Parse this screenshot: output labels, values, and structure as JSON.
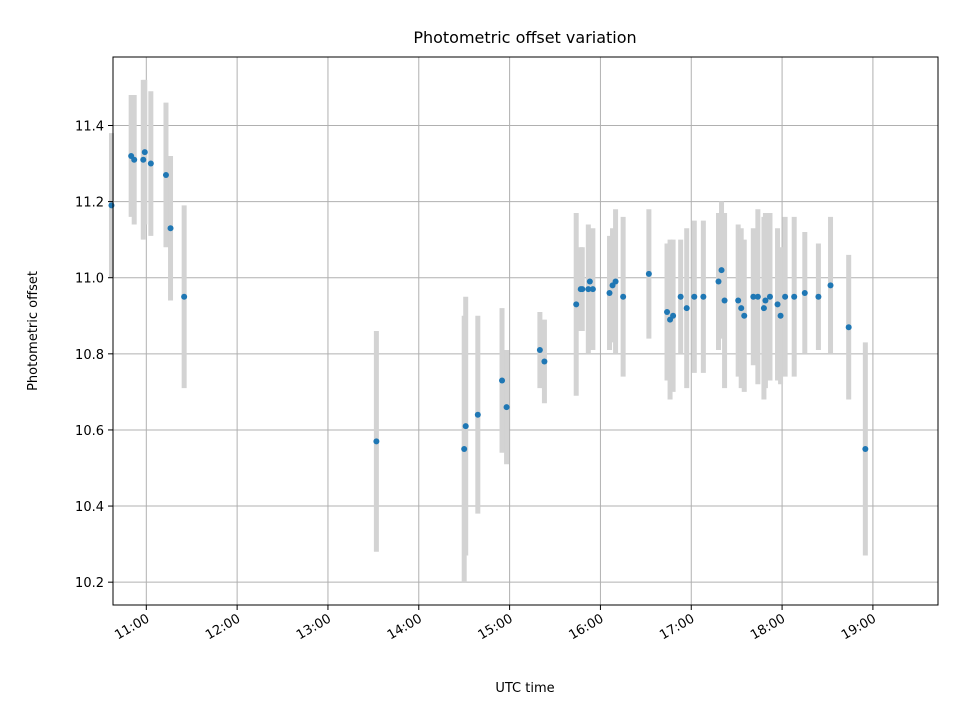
{
  "chart_data": {
    "type": "scatter",
    "title": "Photometric offset variation",
    "xlabel": "UTC time",
    "ylabel": "Photometric offset",
    "grid": true,
    "x_ticks": [
      "11:00",
      "12:00",
      "13:00",
      "14:00",
      "15:00",
      "16:00",
      "17:00",
      "18:00",
      "19:00"
    ],
    "y_ticks": [
      "10.2",
      "10.4",
      "10.6",
      "10.8",
      "11.0",
      "11.2",
      "11.4"
    ],
    "xlim": [
      "10:38",
      "19:43"
    ],
    "ylim": [
      10.14,
      11.58
    ],
    "colors": {
      "points": "#1f77b4",
      "errorbars": "#d3d3d3",
      "grid": "#b0b0b0"
    },
    "series": [
      {
        "x": [
          "10:37",
          "10:50",
          "10:52",
          "10:58",
          "10:59",
          "11:03",
          "11:13",
          "11:16",
          "11:25",
          "13:32",
          "14:30",
          "14:31",
          "14:39",
          "14:55",
          "14:58",
          "15:20",
          "15:23",
          "15:44",
          "15:47",
          "15:48",
          "15:52",
          "15:53",
          "15:55",
          "16:06",
          "16:08",
          "16:10",
          "16:15",
          "16:32",
          "16:44",
          "16:46",
          "16:48",
          "16:53",
          "16:57",
          "17:02",
          "17:08",
          "17:18",
          "17:20",
          "17:22",
          "17:31",
          "17:33",
          "17:35",
          "17:41",
          "17:44",
          "17:48",
          "17:49",
          "17:52",
          "17:57",
          "17:59",
          "18:02",
          "18:08",
          "18:15",
          "18:24",
          "18:32",
          "18:44",
          "18:55"
        ],
        "y": [
          11.19,
          11.32,
          11.31,
          11.31,
          11.33,
          11.3,
          11.27,
          11.13,
          10.95,
          10.57,
          10.55,
          10.61,
          10.64,
          10.73,
          10.66,
          10.81,
          10.78,
          10.93,
          10.97,
          10.97,
          10.97,
          10.99,
          10.97,
          10.96,
          10.98,
          10.99,
          10.95,
          11.01,
          10.91,
          10.89,
          10.9,
          10.95,
          10.92,
          10.95,
          10.95,
          10.99,
          11.02,
          10.94,
          10.94,
          10.92,
          10.9,
          10.95,
          10.95,
          10.92,
          10.94,
          10.95,
          10.93,
          10.9,
          10.95,
          10.95,
          10.96,
          10.95,
          10.98,
          10.87,
          10.55
        ],
        "yerr": [
          0.19,
          0.16,
          0.17,
          0.21,
          0.19,
          0.19,
          0.19,
          0.19,
          0.24,
          0.29,
          0.35,
          0.34,
          0.26,
          0.19,
          0.15,
          0.1,
          0.11,
          0.24,
          0.11,
          0.11,
          0.17,
          0.13,
          0.16,
          0.15,
          0.15,
          0.19,
          0.21,
          0.17,
          0.18,
          0.21,
          0.2,
          0.15,
          0.21,
          0.2,
          0.2,
          0.18,
          0.18,
          0.23,
          0.2,
          0.21,
          0.2,
          0.18,
          0.23,
          0.24,
          0.23,
          0.22,
          0.2,
          0.18,
          0.21,
          0.21,
          0.16,
          0.14,
          0.18,
          0.19,
          0.28
        ]
      }
    ]
  }
}
